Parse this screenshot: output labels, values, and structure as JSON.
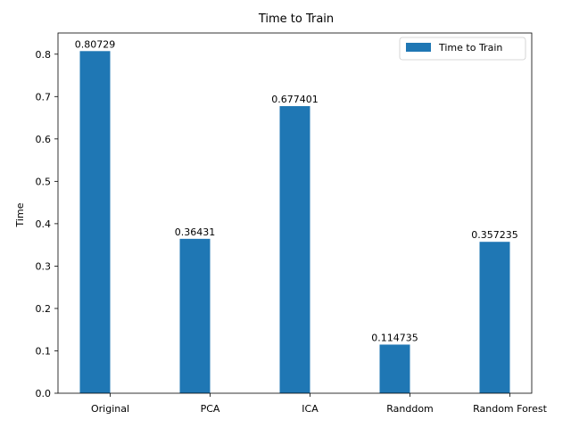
{
  "chart_data": {
    "type": "bar",
    "title": "Time to Train",
    "xlabel": "",
    "ylabel": "Time",
    "categories": [
      "Original",
      "PCA",
      "ICA",
      "Randdom",
      "Random Forest"
    ],
    "series": [
      {
        "name": "Time to Train",
        "values": [
          0.80729,
          0.36431,
          0.677401,
          0.114735,
          0.357235
        ],
        "labels": [
          "0.80729",
          "0.36431",
          "0.677401",
          "0.114735",
          "0.357235"
        ],
        "color": "#1f77b4"
      }
    ],
    "ylim": [
      0,
      0.85
    ],
    "yticks": [
      "0.0",
      "0.1",
      "0.2",
      "0.3",
      "0.4",
      "0.5",
      "0.6",
      "0.7",
      "0.8"
    ],
    "grid": false,
    "legend": "top-right"
  }
}
